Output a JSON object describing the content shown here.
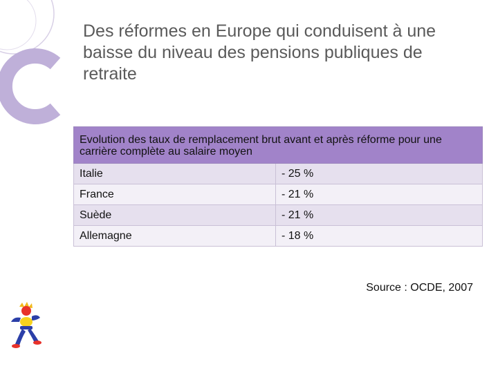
{
  "slide": {
    "title": "Des réformes en Europe qui conduisent à une baisse du niveau des pensions publiques de retraite"
  },
  "table": {
    "header": "Evolution des taux de remplacement brut avant et après réforme pour une carrière complète au salaire moyen",
    "rows": [
      {
        "country": "Italie",
        "value": "- 25 %"
      },
      {
        "country": "France",
        "value": "- 21 %"
      },
      {
        "country": "Suède",
        "value": "- 21 %"
      },
      {
        "country": "Allemagne",
        "value": "- 18 %"
      }
    ]
  },
  "source": "Source : OCDE, 2007",
  "colors": {
    "accent": "#a183c9",
    "row_dark": "#e6e0ee",
    "row_light": "#f3f0f7"
  },
  "icons": {
    "decoration": "purple-circles-decoration",
    "logo": "colorful-figure-logo"
  }
}
